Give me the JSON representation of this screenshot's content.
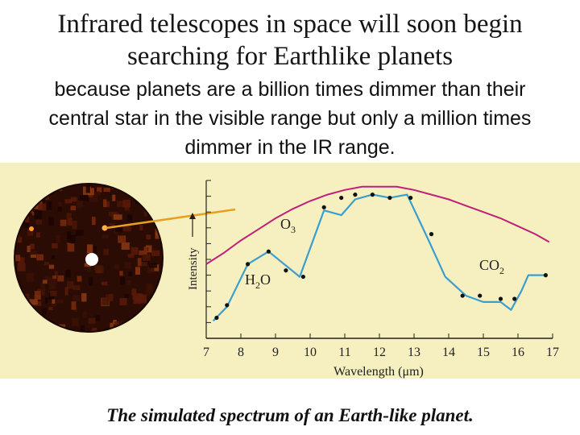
{
  "slide": {
    "title_line1": "Infrared telescopes in space will soon begin",
    "title_line2": "searching for Earthlike planets",
    "subtitle_line1": "because planets are a billion times dimmer than their",
    "subtitle_line2": "central star in the visible range but only a million times",
    "subtitle_line3": "dimmer in the IR range.",
    "caption": "The simulated spectrum of an Earth-like planet."
  },
  "colors": {
    "panel_background": "#f6efc0",
    "envelope": "#c0207a",
    "spectrum": "#3a9fd0",
    "pointer": "#e8a020",
    "disk": "#2a0c04"
  },
  "chart_data": {
    "type": "line",
    "xlabel": "Wavelength (μm)",
    "ylabel": "Intensity",
    "xlim": [
      7,
      17
    ],
    "ylim": [
      0,
      10
    ],
    "x_ticks": [
      "7",
      "8",
      "9",
      "10",
      "11",
      "12",
      "13",
      "14",
      "15",
      "16",
      "17"
    ],
    "grid": false,
    "series": [
      {
        "kind": "envelope",
        "x": [
          7.0,
          7.5,
          8.0,
          8.5,
          9.0,
          9.5,
          10.0,
          10.5,
          11.0,
          11.5,
          12.0,
          12.5,
          13.0,
          13.5,
          14.0,
          14.5,
          15.0,
          15.5,
          16.0,
          16.5,
          16.9
        ],
        "y": [
          4.7,
          5.4,
          6.2,
          6.9,
          7.6,
          8.2,
          8.7,
          9.1,
          9.4,
          9.6,
          9.6,
          9.6,
          9.4,
          9.1,
          8.8,
          8.4,
          8.0,
          7.6,
          7.1,
          6.6,
          6.1
        ]
      },
      {
        "kind": "spectrum",
        "x": [
          7.2,
          7.6,
          8.2,
          8.8,
          9.7,
          10.4,
          10.9,
          11.3,
          11.8,
          12.3,
          12.8,
          13.4,
          13.9,
          14.5,
          15.0,
          15.5,
          15.8,
          16.1,
          16.3,
          16.8
        ],
        "y": [
          1.1,
          2.0,
          4.7,
          5.5,
          3.9,
          8.1,
          7.8,
          8.8,
          9.1,
          8.9,
          9.1,
          6.3,
          3.9,
          2.7,
          2.3,
          2.3,
          1.8,
          3.0,
          4.0,
          4.0
        ]
      },
      {
        "kind": "measured points",
        "x": [
          7.3,
          7.6,
          8.2,
          8.8,
          9.3,
          9.8,
          10.4,
          10.9,
          11.3,
          11.8,
          12.3,
          12.9,
          13.5,
          14.4,
          14.9,
          15.5,
          15.9,
          16.8
        ],
        "y": [
          1.3,
          2.1,
          4.7,
          5.5,
          4.3,
          3.9,
          8.3,
          8.9,
          9.1,
          9.1,
          8.9,
          8.9,
          6.6,
          2.7,
          2.7,
          2.5,
          2.5,
          4.0
        ]
      }
    ],
    "annotations": [
      {
        "text": "H",
        "sub": "2",
        "tail": "O"
      },
      {
        "text": "O",
        "sub": "3",
        "tail": ""
      },
      {
        "text": "CO",
        "sub": "2",
        "tail": ""
      }
    ]
  }
}
